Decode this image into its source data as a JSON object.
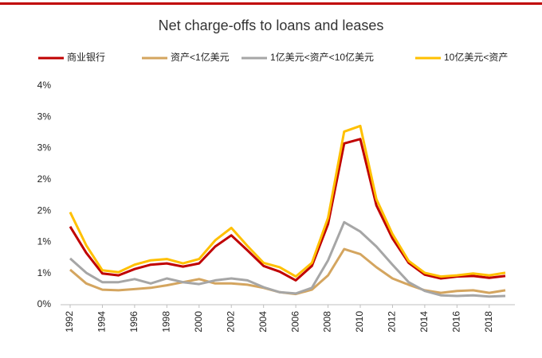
{
  "chart_data": {
    "type": "line",
    "title": "Net charge-offs to loans and leases",
    "x": [
      1992,
      1993,
      1994,
      1995,
      1996,
      1997,
      1998,
      1999,
      2000,
      2001,
      2002,
      2003,
      2004,
      2005,
      2006,
      2007,
      2008,
      2009,
      2010,
      2011,
      2012,
      2013,
      2014,
      2015,
      2016,
      2017,
      2018,
      2019
    ],
    "xlim": [
      1992,
      2019
    ],
    "xticks": [
      1992,
      1994,
      1996,
      1998,
      2000,
      2002,
      2004,
      2006,
      2008,
      2010,
      2012,
      2014,
      2016,
      2018
    ],
    "ylim": [
      0,
      3.5
    ],
    "yticks": [
      {
        "value": 0,
        "label": "0%"
      },
      {
        "value": 0.5,
        "label": "1%"
      },
      {
        "value": 1,
        "label": "1%"
      },
      {
        "value": 1.5,
        "label": "2%"
      },
      {
        "value": 2,
        "label": "2%"
      },
      {
        "value": 2.5,
        "label": "3%"
      },
      {
        "value": 3,
        "label": "3%"
      },
      {
        "value": 3.5,
        "label": "4%"
      }
    ],
    "legend": "top",
    "series": [
      {
        "name": "商业银行",
        "color": "#c00000",
        "values": [
          1.25,
          0.83,
          0.5,
          0.47,
          0.57,
          0.64,
          0.66,
          0.61,
          0.66,
          0.93,
          1.11,
          0.87,
          0.62,
          0.53,
          0.39,
          0.62,
          1.29,
          2.58,
          2.65,
          1.59,
          1.06,
          0.67,
          0.48,
          0.42,
          0.45,
          0.46,
          0.43,
          0.46
        ]
      },
      {
        "name": "资产<1亿美元",
        "color": "#d4a55f",
        "values": [
          0.56,
          0.34,
          0.24,
          0.23,
          0.25,
          0.27,
          0.31,
          0.36,
          0.41,
          0.34,
          0.34,
          0.32,
          0.27,
          0.2,
          0.17,
          0.24,
          0.47,
          0.89,
          0.81,
          0.6,
          0.42,
          0.32,
          0.23,
          0.19,
          0.22,
          0.23,
          0.19,
          0.23
        ]
      },
      {
        "name": "1亿美元<资产<10亿美元",
        "color": "#a6a6a6",
        "values": [
          0.74,
          0.51,
          0.36,
          0.36,
          0.41,
          0.34,
          0.42,
          0.36,
          0.33,
          0.39,
          0.42,
          0.39,
          0.28,
          0.2,
          0.18,
          0.27,
          0.71,
          1.32,
          1.17,
          0.93,
          0.64,
          0.36,
          0.22,
          0.15,
          0.14,
          0.15,
          0.13,
          0.14
        ]
      },
      {
        "name": "10亿美元<资产",
        "color": "#ffc000",
        "values": [
          1.48,
          0.95,
          0.55,
          0.52,
          0.64,
          0.71,
          0.73,
          0.66,
          0.73,
          1.03,
          1.23,
          0.94,
          0.67,
          0.6,
          0.45,
          0.67,
          1.39,
          2.77,
          2.86,
          1.69,
          1.13,
          0.7,
          0.51,
          0.45,
          0.47,
          0.5,
          0.47,
          0.51
        ]
      }
    ]
  }
}
